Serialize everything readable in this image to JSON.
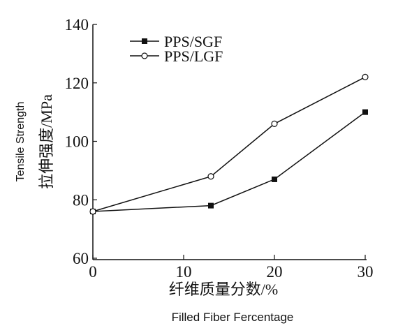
{
  "chart_data": {
    "type": "line",
    "xlabel": "纤维质量分数/%",
    "xlabel_en": "Filled Fiber Fercentage",
    "ylabel": "拉伸强度/MPa",
    "ylabel_en": "Tensile Strength",
    "xlim": [
      0,
      30
    ],
    "ylim": [
      60,
      140
    ],
    "x_ticks": [
      "0",
      "10",
      "20",
      "30"
    ],
    "y_ticks": [
      "60",
      "80",
      "100",
      "120",
      "140"
    ],
    "grid": false,
    "legend_position": "top-left",
    "series": [
      {
        "name": "PPS/SGF",
        "marker": "filled-square",
        "x": [
          0,
          13,
          20,
          30
        ],
        "y": [
          76,
          78,
          87,
          110
        ]
      },
      {
        "name": "PPS/LGF",
        "marker": "open-circle",
        "x": [
          0,
          13,
          20,
          30
        ],
        "y": [
          76,
          88,
          106,
          122
        ]
      }
    ]
  }
}
